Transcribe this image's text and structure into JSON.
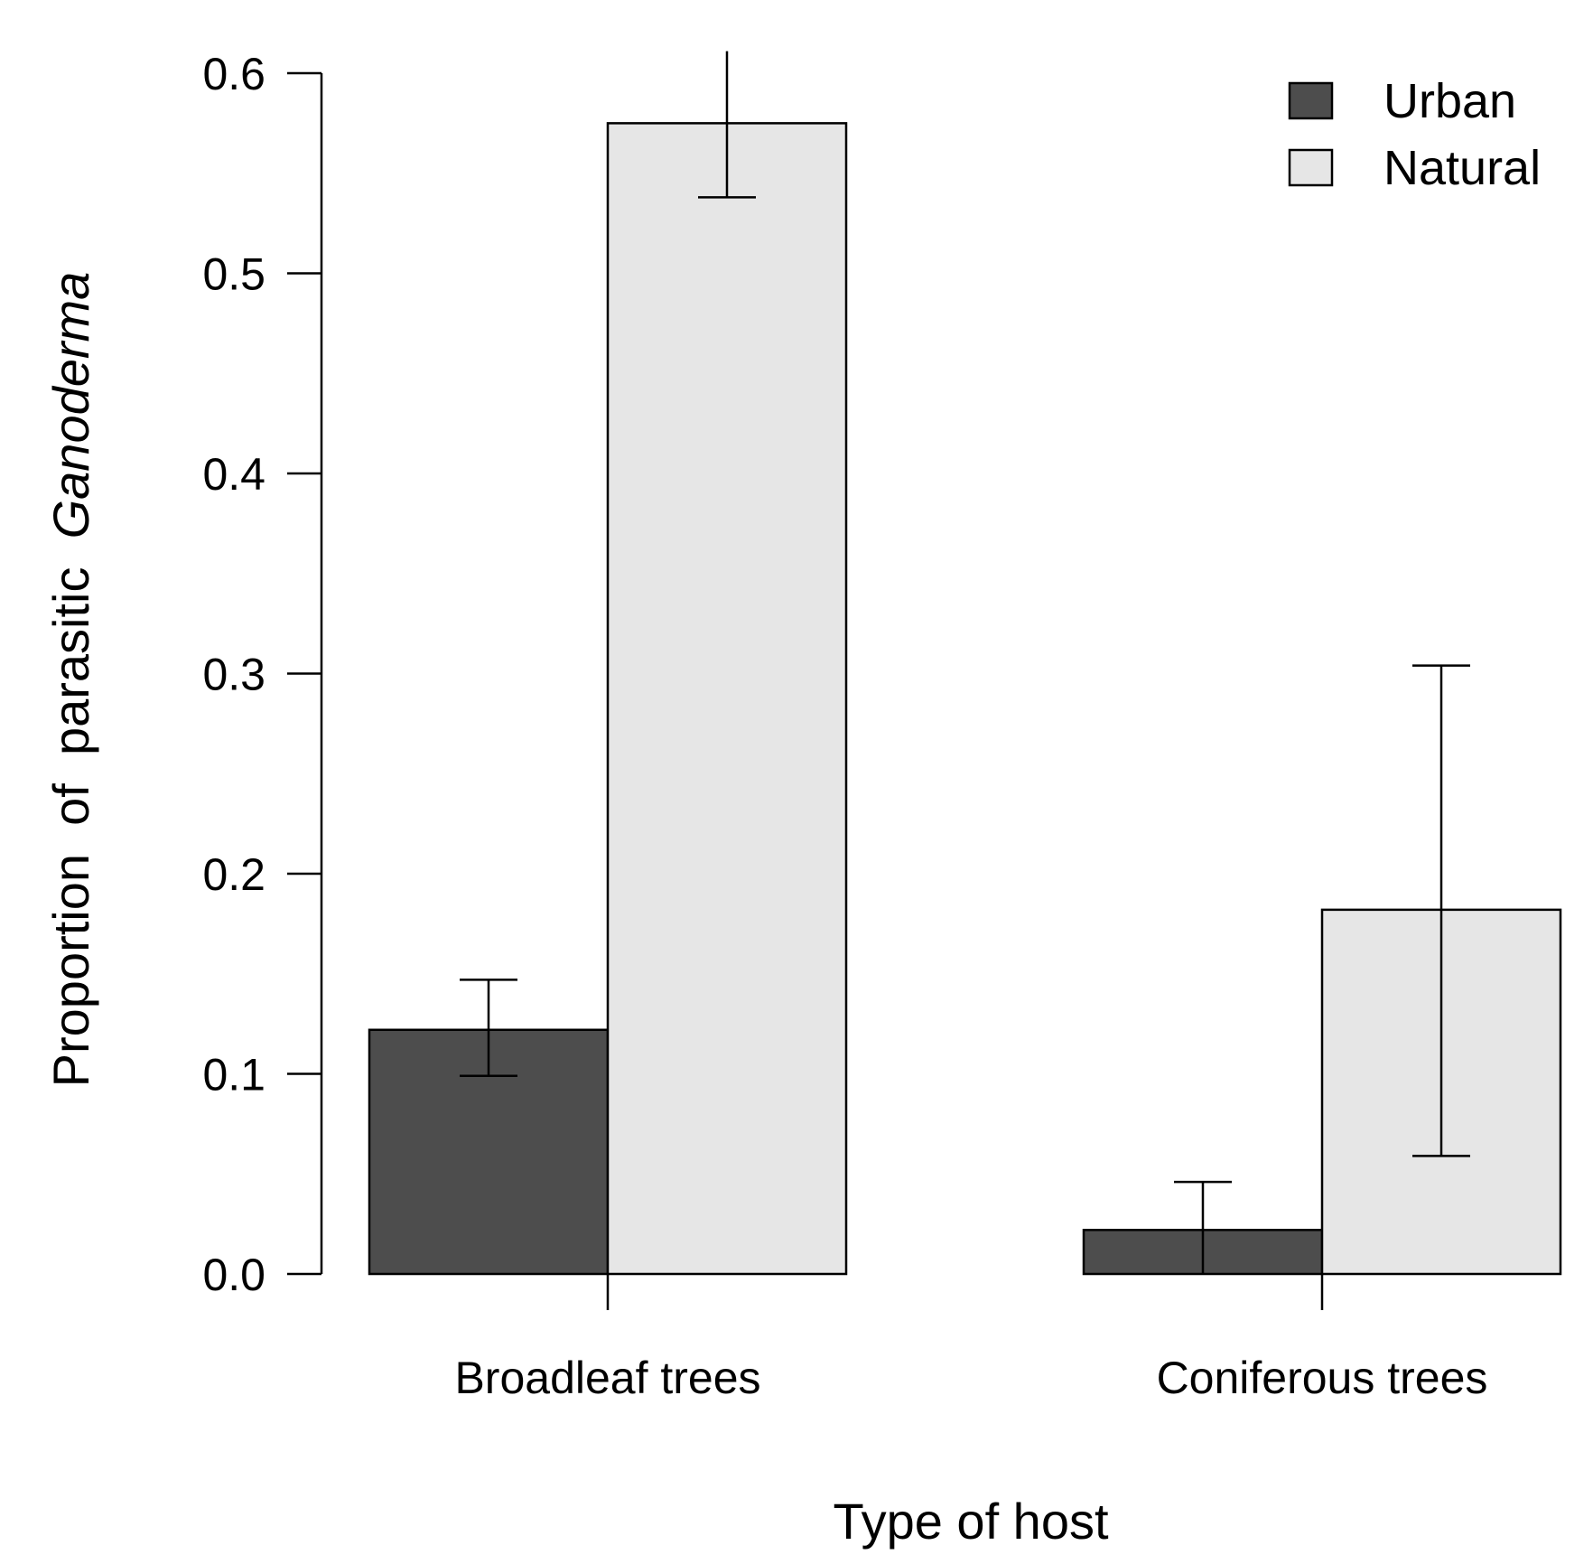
{
  "chart_data": {
    "type": "bar",
    "title": "",
    "xlabel": "Type of host",
    "ylabel": {
      "prefix": "Proportion  of  parasitic  ",
      "italic": "Ganoderma"
    },
    "categories": [
      "Broadleaf trees",
      "Coniferous trees"
    ],
    "series": [
      {
        "name": "Urban",
        "color": "#4d4d4d",
        "values": [
          0.122,
          0.022
        ],
        "error_low": [
          0.099,
          0.0
        ],
        "error_high": [
          0.147,
          0.046
        ]
      },
      {
        "name": "Natural",
        "color": "#e6e6e6",
        "values": [
          0.575,
          0.182
        ],
        "error_low": [
          0.538,
          0.059
        ],
        "error_high": [
          0.611,
          0.304
        ]
      }
    ],
    "ylim": [
      0,
      0.6
    ],
    "yticks": [
      0.0,
      0.1,
      0.2,
      0.3,
      0.4,
      0.5,
      0.6
    ],
    "ytick_labels": [
      "0.0",
      "0.1",
      "0.2",
      "0.3",
      "0.4",
      "0.5",
      "0.6"
    ],
    "legend_position": "top-right",
    "grid": false
  }
}
